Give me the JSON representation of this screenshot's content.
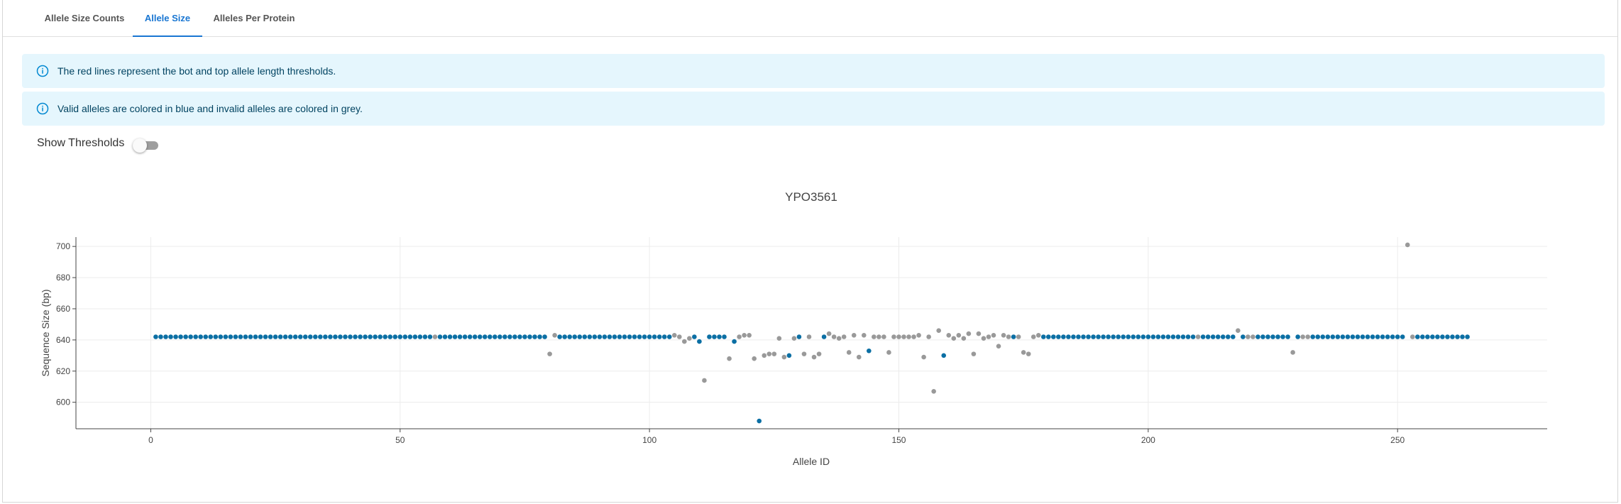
{
  "tabs": [
    {
      "label": "Allele Size Counts",
      "active": false
    },
    {
      "label": "Allele Size",
      "active": true
    },
    {
      "label": "Alleles Per Protein",
      "active": false
    }
  ],
  "alerts": [
    {
      "text": "The red lines represent the bot and top allele length thresholds."
    },
    {
      "text": "Valid alleles are colored in blue and invalid alleles are colored in grey."
    }
  ],
  "threshold_toggle": {
    "label": "Show Thresholds",
    "checked": false
  },
  "colors": {
    "valid": "#0b6fa4",
    "invalid": "#999999",
    "accent": "#1976d2"
  },
  "chart_data": {
    "type": "scatter",
    "title": "YPO3561",
    "xlabel": "Allele ID",
    "ylabel": "Sequence Size (bp)",
    "xlim": [
      -15,
      280
    ],
    "ylim": [
      583,
      706
    ],
    "xticks": [
      0,
      50,
      100,
      150,
      200,
      250
    ],
    "yticks": [
      600,
      620,
      640,
      660,
      680,
      700
    ],
    "grid": true,
    "default_y": 642,
    "invalid_ids": [
      57,
      80,
      81,
      105,
      106,
      107,
      108,
      111,
      116,
      118,
      119,
      120,
      121,
      123,
      124,
      125,
      126,
      127,
      129,
      131,
      132,
      133,
      134,
      136,
      137,
      138,
      139,
      140,
      141,
      142,
      143,
      145,
      146,
      147,
      148,
      149,
      150,
      151,
      152,
      153,
      154,
      155,
      156,
      157,
      158,
      160,
      161,
      162,
      163,
      164,
      165,
      166,
      167,
      168,
      169,
      170,
      171,
      172,
      174,
      175,
      176,
      177,
      178,
      210,
      218,
      220,
      221,
      229,
      231,
      232,
      253
    ],
    "offsets": [
      {
        "x": 80,
        "y": 631
      },
      {
        "x": 81,
        "y": 643
      },
      {
        "x": 105,
        "y": 643
      },
      {
        "x": 106,
        "y": 642
      },
      {
        "x": 107,
        "y": 639
      },
      {
        "x": 108,
        "y": 641
      },
      {
        "x": 110,
        "y": 639
      },
      {
        "x": 111,
        "y": 614
      },
      {
        "x": 116,
        "y": 628
      },
      {
        "x": 117,
        "y": 639
      },
      {
        "x": 118,
        "y": 642
      },
      {
        "x": 119,
        "y": 643
      },
      {
        "x": 120,
        "y": 643
      },
      {
        "x": 121,
        "y": 628
      },
      {
        "x": 122,
        "y": 588
      },
      {
        "x": 123,
        "y": 630
      },
      {
        "x": 124,
        "y": 631
      },
      {
        "x": 125,
        "y": 631
      },
      {
        "x": 126,
        "y": 641
      },
      {
        "x": 127,
        "y": 629
      },
      {
        "x": 128,
        "y": 630
      },
      {
        "x": 129,
        "y": 641
      },
      {
        "x": 131,
        "y": 631
      },
      {
        "x": 132,
        "y": 642
      },
      {
        "x": 133,
        "y": 629
      },
      {
        "x": 134,
        "y": 631
      },
      {
        "x": 136,
        "y": 644
      },
      {
        "x": 137,
        "y": 642
      },
      {
        "x": 138,
        "y": 641
      },
      {
        "x": 140,
        "y": 632
      },
      {
        "x": 141,
        "y": 643
      },
      {
        "x": 142,
        "y": 629
      },
      {
        "x": 143,
        "y": 643
      },
      {
        "x": 144,
        "y": 633
      },
      {
        "x": 148,
        "y": 632
      },
      {
        "x": 149,
        "y": 642
      },
      {
        "x": 154,
        "y": 643
      },
      {
        "x": 155,
        "y": 629
      },
      {
        "x": 156,
        "y": 642
      },
      {
        "x": 157,
        "y": 607
      },
      {
        "x": 158,
        "y": 646
      },
      {
        "x": 159,
        "y": 630
      },
      {
        "x": 160,
        "y": 643
      },
      {
        "x": 161,
        "y": 641
      },
      {
        "x": 162,
        "y": 643
      },
      {
        "x": 163,
        "y": 641
      },
      {
        "x": 164,
        "y": 644
      },
      {
        "x": 165,
        "y": 631
      },
      {
        "x": 166,
        "y": 644
      },
      {
        "x": 167,
        "y": 641
      },
      {
        "x": 169,
        "y": 643
      },
      {
        "x": 170,
        "y": 636
      },
      {
        "x": 171,
        "y": 643
      },
      {
        "x": 175,
        "y": 632
      },
      {
        "x": 176,
        "y": 631
      },
      {
        "x": 178,
        "y": 643
      },
      {
        "x": 218,
        "y": 646
      },
      {
        "x": 229,
        "y": 632
      },
      {
        "x": 252,
        "y": 701
      }
    ],
    "x_range": [
      1,
      264
    ],
    "missing_ids": [
      252
    ]
  }
}
